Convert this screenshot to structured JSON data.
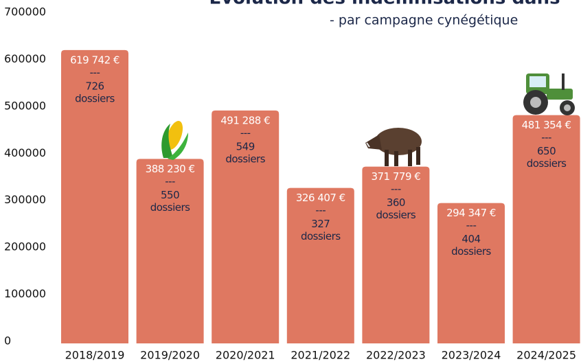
{
  "chart_data": {
    "type": "bar",
    "title": "Évolution des indemnisations dans",
    "subtitle": "- par campagne cynégétique",
    "categories": [
      "2018/2019",
      "2019/2020",
      "2020/2021",
      "2021/2022",
      "2022/2023",
      "2023/2024",
      "2024/2025"
    ],
    "values": [
      619742,
      388230,
      491288,
      326407,
      371779,
      294347,
      481354
    ],
    "value_labels": [
      "619 742 €",
      "388 230 €",
      "491 288 €",
      "326 407 €",
      "371 779 €",
      "294 347 €",
      "481 354 €"
    ],
    "dossiers": [
      726,
      550,
      549,
      327,
      360,
      404,
      650
    ],
    "separator": "---",
    "dossiers_label": "dossiers",
    "color": "#df7861",
    "ylim": [
      0,
      700000
    ],
    "yticks": [
      0,
      100000,
      200000,
      300000,
      400000,
      500000,
      600000,
      700000
    ]
  }
}
